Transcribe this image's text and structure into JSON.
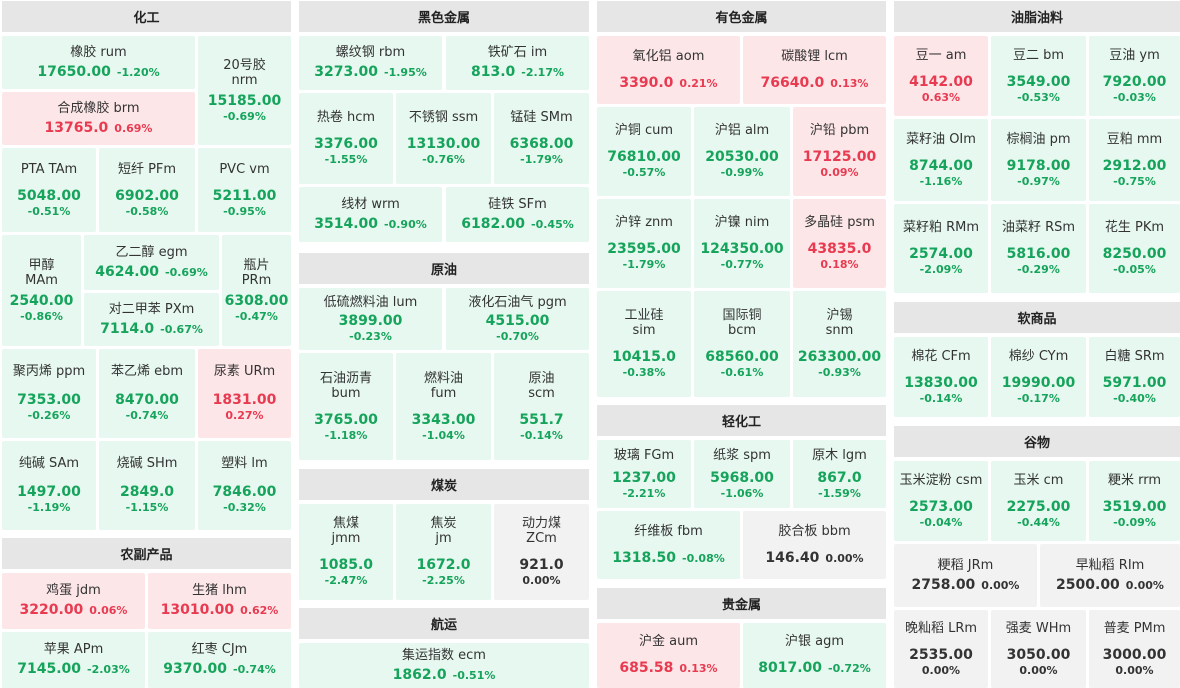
{
  "sections": {
    "chem": "化工",
    "ferrous": "黑色金属",
    "nonferrous": "有色金属",
    "oils": "油脂油料",
    "agri": "农副产品",
    "crude": "原油",
    "coal": "煤炭",
    "shipping": "航运",
    "soft": "软商品",
    "grain": "谷物",
    "light": "轻化工",
    "precious": "贵金属"
  },
  "quotes": {
    "rum": {
      "name": "橡胶 rum",
      "price": "17650.00",
      "change": "-1.20%"
    },
    "nrm": {
      "name": "20号胶",
      "code": "nrm",
      "price": "15185.00",
      "change": "-0.69%"
    },
    "brm": {
      "name": "合成橡胶 brm",
      "price": "13765.0",
      "change": "0.69%"
    },
    "tam": {
      "name": "PTA TAm",
      "price": "5048.00",
      "change": "-0.51%"
    },
    "pfm": {
      "name": "短纤 PFm",
      "price": "6902.00",
      "change": "-0.58%"
    },
    "vm": {
      "name": "PVC vm",
      "price": "5211.00",
      "change": "-0.95%"
    },
    "mam": {
      "name": "甲醇",
      "code": "MAm",
      "price": "2540.00",
      "change": "-0.86%"
    },
    "egm": {
      "name": "乙二醇 egm",
      "price": "4624.00",
      "change": "-0.69%"
    },
    "prm": {
      "name": "瓶片",
      "code": "PRm",
      "price": "6308.00",
      "change": "-0.47%"
    },
    "pxm": {
      "name": "对二甲苯 PXm",
      "price": "7114.0",
      "change": "-0.67%"
    },
    "ppm": {
      "name": "聚丙烯 ppm",
      "price": "7353.00",
      "change": "-0.26%"
    },
    "ebm": {
      "name": "苯乙烯 ebm",
      "price": "8470.00",
      "change": "-0.74%"
    },
    "urm": {
      "name": "尿素 URm",
      "price": "1831.00",
      "change": "0.27%"
    },
    "sam": {
      "name": "纯碱 SAm",
      "price": "1497.00",
      "change": "-1.19%"
    },
    "shm": {
      "name": "烧碱 SHm",
      "price": "2849.0",
      "change": "-1.15%"
    },
    "lm": {
      "name": "塑料 lm",
      "price": "7846.00",
      "change": "-0.32%"
    },
    "jdm": {
      "name": "鸡蛋 jdm",
      "price": "3220.00",
      "change": "0.06%"
    },
    "lhm": {
      "name": "生猪 lhm",
      "price": "13010.00",
      "change": "0.62%"
    },
    "apm": {
      "name": "苹果 APm",
      "price": "7145.00",
      "change": "-2.03%"
    },
    "cjm": {
      "name": "红枣 CJm",
      "price": "9370.00",
      "change": "-0.74%"
    },
    "rbm": {
      "name": "螺纹钢 rbm",
      "price": "3273.00",
      "change": "-1.95%"
    },
    "im": {
      "name": "铁矿石 im",
      "price": "813.0",
      "change": "-2.17%"
    },
    "hcm": {
      "name": "热卷 hcm",
      "price": "3376.00",
      "change": "-1.55%"
    },
    "ssm": {
      "name": "不锈钢 ssm",
      "price": "13130.00",
      "change": "-0.76%"
    },
    "smm": {
      "name": "锰硅 SMm",
      "price": "6368.00",
      "change": "-1.79%"
    },
    "wrm": {
      "name": "线材 wrm",
      "price": "3514.00",
      "change": "-0.90%"
    },
    "sfm": {
      "name": "硅铁 SFm",
      "price": "6182.00",
      "change": "-0.45%"
    },
    "lum": {
      "name": "低硫燃料油 lum",
      "price": "3899.00",
      "change": "-0.23%"
    },
    "pgm": {
      "name": "液化石油气 pgm",
      "price": "4515.00",
      "change": "-0.70%"
    },
    "bum": {
      "name": "石油沥青",
      "code": "bum",
      "price": "3765.00",
      "change": "-1.18%"
    },
    "fum": {
      "name": "燃料油",
      "code": "fum",
      "price": "3343.00",
      "change": "-1.04%"
    },
    "scm": {
      "name": "原油",
      "code": "scm",
      "price": "551.7",
      "change": "-0.14%"
    },
    "jmm": {
      "name": "焦煤",
      "code": "jmm",
      "price": "1085.0",
      "change": "-2.47%"
    },
    "jm": {
      "name": "焦炭",
      "code": "jm",
      "price": "1672.0",
      "change": "-2.25%"
    },
    "zcm": {
      "name": "动力煤",
      "code": "ZCm",
      "price": "921.0",
      "change": "0.00%"
    },
    "ecm": {
      "name": "集运指数 ecm",
      "price": "1862.0",
      "change": "-0.51%"
    },
    "aom": {
      "name": "氧化铝 aom",
      "price": "3390.0",
      "change": "0.21%"
    },
    "lcm": {
      "name": "碳酸锂 lcm",
      "price": "76640.0",
      "change": "0.13%"
    },
    "cum": {
      "name": "沪铜 cum",
      "price": "76810.00",
      "change": "-0.57%"
    },
    "alm": {
      "name": "沪铝 alm",
      "price": "20530.00",
      "change": "-0.99%"
    },
    "pbm": {
      "name": "沪铅 pbm",
      "price": "17125.00",
      "change": "0.09%"
    },
    "znm": {
      "name": "沪锌 znm",
      "price": "23595.00",
      "change": "-1.79%"
    },
    "nim": {
      "name": "沪镍 nim",
      "price": "124350.00",
      "change": "-0.77%"
    },
    "psm": {
      "name": "多晶硅 psm",
      "price": "43835.0",
      "change": "0.18%"
    },
    "sim": {
      "name": "工业硅",
      "code": "sim",
      "price": "10415.0",
      "change": "-0.38%"
    },
    "bcm": {
      "name": "国际铜",
      "code": "bcm",
      "price": "68560.00",
      "change": "-0.61%"
    },
    "snm": {
      "name": "沪锡",
      "code": "snm",
      "price": "263300.00",
      "change": "-0.93%"
    },
    "fgm": {
      "name": "玻璃 FGm",
      "price": "1237.00",
      "change": "-2.21%"
    },
    "spm": {
      "name": "纸浆 spm",
      "price": "5968.00",
      "change": "-1.06%"
    },
    "lgm": {
      "name": "原木 lgm",
      "price": "867.0",
      "change": "-1.59%"
    },
    "fbm": {
      "name": "纤维板 fbm",
      "price": "1318.50",
      "change": "-0.08%"
    },
    "bbm": {
      "name": "胶合板 bbm",
      "price": "146.40",
      "change": "0.00%"
    },
    "aum": {
      "name": "沪金 aum",
      "price": "685.58",
      "change": "0.13%"
    },
    "agm": {
      "name": "沪银 agm",
      "price": "8017.00",
      "change": "-0.72%"
    },
    "am": {
      "name": "豆一 am",
      "price": "4142.00",
      "change": "0.63%"
    },
    "bm": {
      "name": "豆二 bm",
      "price": "3549.00",
      "change": "-0.53%"
    },
    "ym": {
      "name": "豆油 ym",
      "price": "7920.00",
      "change": "-0.03%"
    },
    "oim": {
      "name": "菜籽油 OIm",
      "price": "8744.00",
      "change": "-1.16%"
    },
    "pm": {
      "name": "棕榈油 pm",
      "price": "9178.00",
      "change": "-0.97%"
    },
    "mm": {
      "name": "豆粕 mm",
      "price": "2912.00",
      "change": "-0.75%"
    },
    "rmm": {
      "name": "菜籽粕 RMm",
      "price": "2574.00",
      "change": "-2.09%"
    },
    "rsm": {
      "name": "油菜籽 RSm",
      "price": "5816.00",
      "change": "-0.29%"
    },
    "pkm": {
      "name": "花生 PKm",
      "price": "8250.00",
      "change": "-0.05%"
    },
    "cfm": {
      "name": "棉花 CFm",
      "price": "13830.00",
      "change": "-0.14%"
    },
    "cym": {
      "name": "棉纱 CYm",
      "price": "19990.00",
      "change": "-0.17%"
    },
    "srm": {
      "name": "白糖 SRm",
      "price": "5971.00",
      "change": "-0.40%"
    },
    "csm": {
      "name": "玉米淀粉 csm",
      "price": "2573.00",
      "change": "-0.04%"
    },
    "cm": {
      "name": "玉米 cm",
      "price": "2275.00",
      "change": "-0.44%"
    },
    "rrm": {
      "name": "粳米 rrm",
      "price": "3519.00",
      "change": "-0.09%"
    },
    "jrm": {
      "name": "粳稻 JRm",
      "price": "2758.00",
      "change": "0.00%"
    },
    "rim": {
      "name": "早籼稻 RIm",
      "price": "2500.00",
      "change": "0.00%"
    },
    "lrm": {
      "name": "晚籼稻 LRm",
      "price": "2535.00",
      "change": "0.00%"
    },
    "whm": {
      "name": "强麦 WHm",
      "price": "3050.00",
      "change": "0.00%"
    },
    "pmm": {
      "name": "普麦 PMm",
      "price": "3000.00",
      "change": "0.00%"
    }
  },
  "colors": {
    "up_bg": "#fde6e8",
    "up_text": "#e83a50",
    "down_bg": "#e6f8ef",
    "down_text": "#16a35b",
    "flat_bg": "#f2f2f2",
    "header_bg": "#e6e6e6"
  }
}
